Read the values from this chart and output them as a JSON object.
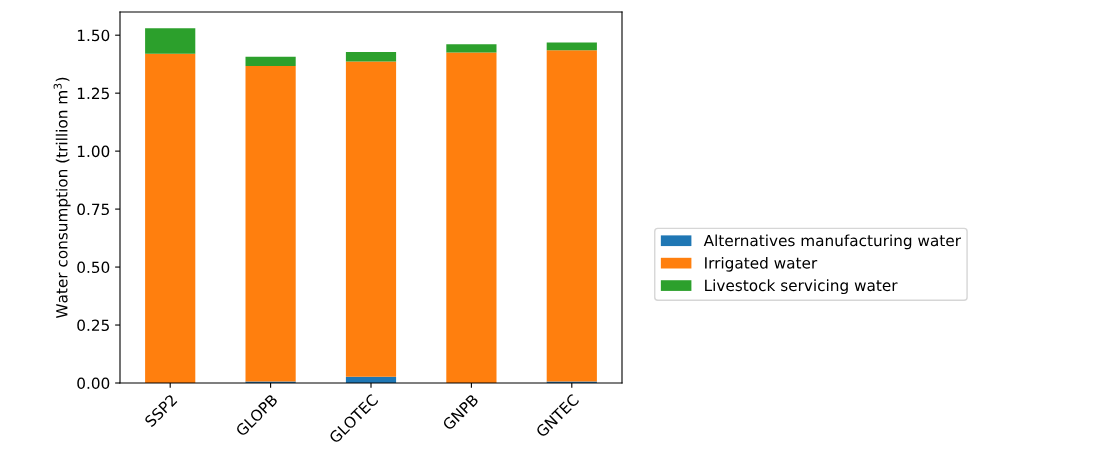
{
  "chart_data": {
    "type": "bar",
    "stacked": true,
    "ylabel": "Water consumption (trillion m$^{3}$)",
    "categories": [
      "SSP2",
      "GLOPB",
      "GLOTEC",
      "GNPB",
      "GNTEC"
    ],
    "series": [
      {
        "name": "Alternatives manufacturing water",
        "color": "#1f77b4",
        "values": [
          0,
          0.007,
          0.027,
          0,
          0.007
        ]
      },
      {
        "name": "Irrigated water",
        "color": "#ff7f0e",
        "values": [
          1.42,
          1.36,
          1.36,
          1.425,
          1.428
        ]
      },
      {
        "name": "Livestock servicing water",
        "color": "#2ca02c",
        "values": [
          0.11,
          0.04,
          0.041,
          0.036,
          0.034
        ]
      }
    ],
    "ylim": [
      0,
      1.6
    ],
    "yticks": [
      {
        "value": 0,
        "label": "0.00"
      },
      {
        "value": 0.25,
        "label": "0.25"
      },
      {
        "value": 0.5,
        "label": "0.50"
      },
      {
        "value": 0.75,
        "label": "0.75"
      },
      {
        "value": 1,
        "label": "1.00"
      },
      {
        "value": 1.25,
        "label": "1.25"
      },
      {
        "value": 1.5,
        "label": "1.50"
      }
    ],
    "grid": false,
    "legend": "right"
  }
}
